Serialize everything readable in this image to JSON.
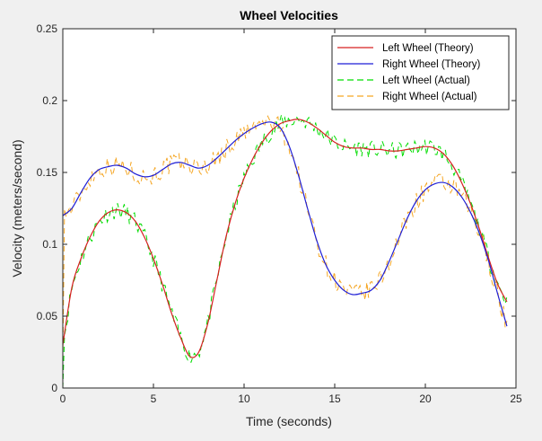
{
  "chart_data": {
    "type": "line",
    "title": "Wheel Velocities",
    "xlabel": "Time (seconds)",
    "ylabel": "Velocity (meters/second)",
    "xlim": [
      0,
      25
    ],
    "ylim": [
      0,
      0.25
    ],
    "xticks": [
      0,
      5,
      10,
      15,
      20,
      25
    ],
    "yticks": [
      0,
      0.05,
      0.1,
      0.15,
      0.2,
      0.25
    ],
    "xtick_labels": [
      "0",
      "5",
      "10",
      "15",
      "20",
      "25"
    ],
    "ytick_labels": [
      "0",
      "0.05",
      "0.1",
      "0.15",
      "0.2",
      "0.25"
    ],
    "grid": false,
    "legend_position": "top-right",
    "series": [
      {
        "name": "Left Wheel (Theory)",
        "color": "#d62020",
        "style": "solid",
        "x": [
          0,
          0.5,
          1,
          1.5,
          2,
          2.5,
          3,
          3.5,
          4,
          4.5,
          5,
          5.5,
          6,
          6.5,
          7,
          7.5,
          8,
          8.5,
          9,
          9.5,
          10,
          10.5,
          11,
          11.5,
          12,
          12.5,
          13,
          13.5,
          14,
          14.5,
          15,
          15.5,
          16,
          16.5,
          17,
          17.5,
          18,
          18.5,
          19,
          19.5,
          20,
          20.5,
          21,
          21.5,
          22,
          22.5,
          23,
          23.5,
          24,
          24.5
        ],
        "y": [
          0.03,
          0.07,
          0.09,
          0.105,
          0.116,
          0.122,
          0.124,
          0.122,
          0.116,
          0.105,
          0.09,
          0.072,
          0.052,
          0.035,
          0.022,
          0.025,
          0.045,
          0.075,
          0.105,
          0.128,
          0.146,
          0.16,
          0.171,
          0.179,
          0.184,
          0.186,
          0.187,
          0.185,
          0.181,
          0.176,
          0.171,
          0.168,
          0.167,
          0.167,
          0.166,
          0.166,
          0.165,
          0.165,
          0.166,
          0.167,
          0.168,
          0.167,
          0.163,
          0.155,
          0.143,
          0.128,
          0.11,
          0.09,
          0.072,
          0.06
        ]
      },
      {
        "name": "Right Wheel (Theory)",
        "color": "#1f1fd6",
        "style": "solid",
        "x": [
          0,
          0.5,
          1,
          1.5,
          2,
          2.5,
          3,
          3.5,
          4,
          4.5,
          5,
          5.5,
          6,
          6.5,
          7,
          7.5,
          8,
          8.5,
          9,
          9.5,
          10,
          10.5,
          11,
          11.5,
          12,
          12.5,
          13,
          13.5,
          14,
          14.5,
          15,
          15.5,
          16,
          16.5,
          17,
          17.5,
          18,
          18.5,
          19,
          19.5,
          20,
          20.5,
          21,
          21.5,
          22,
          22.5,
          23,
          23.5,
          24,
          24.5
        ],
        "y": [
          0.12,
          0.125,
          0.136,
          0.146,
          0.152,
          0.154,
          0.155,
          0.153,
          0.149,
          0.147,
          0.148,
          0.152,
          0.156,
          0.157,
          0.155,
          0.153,
          0.155,
          0.16,
          0.166,
          0.172,
          0.177,
          0.181,
          0.184,
          0.185,
          0.181,
          0.168,
          0.148,
          0.125,
          0.103,
          0.086,
          0.075,
          0.068,
          0.065,
          0.066,
          0.068,
          0.075,
          0.088,
          0.103,
          0.118,
          0.13,
          0.138,
          0.142,
          0.143,
          0.14,
          0.133,
          0.122,
          0.107,
          0.088,
          0.065,
          0.043
        ]
      },
      {
        "name": "Left Wheel (Actual)",
        "color": "#00dd00",
        "style": "dashed",
        "noisy": true,
        "noise_amplitude": 0.006
      },
      {
        "name": "Right Wheel (Actual)",
        "color": "#f5a623",
        "style": "dashed",
        "noisy": true,
        "noise_amplitude": 0.007
      }
    ]
  }
}
